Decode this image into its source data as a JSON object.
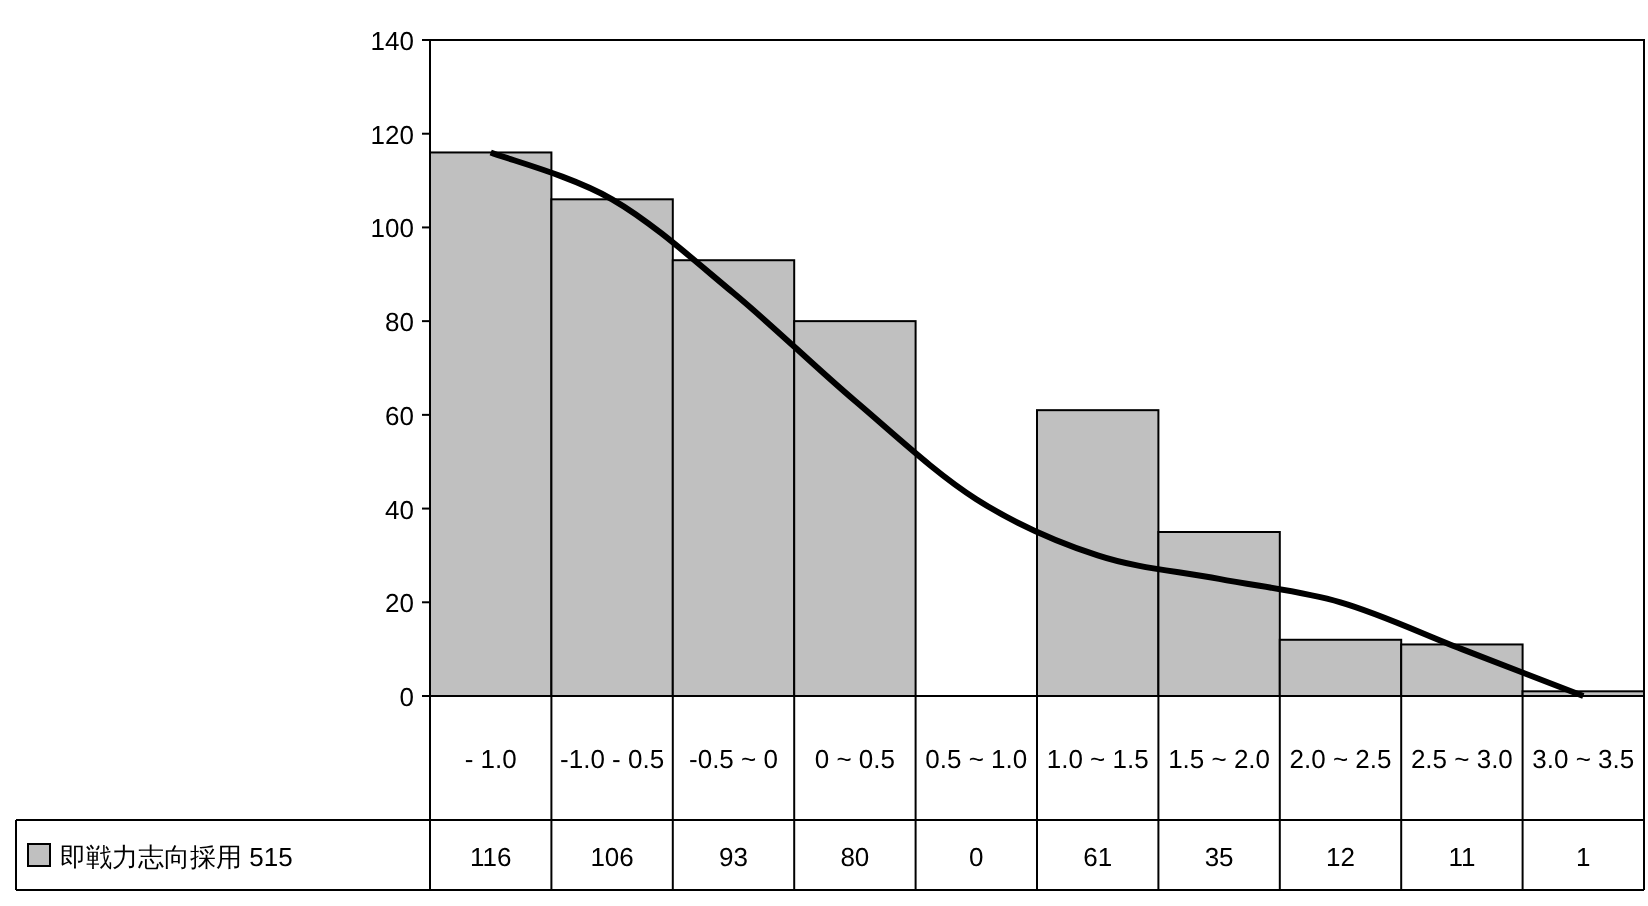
{
  "chart_data": {
    "type": "bar",
    "categories": [
      "- 1.0",
      "-1.0 - 0.5",
      "-0.5 ~ 0",
      "0 ~ 0.5",
      "0.5 ~ 1.0",
      "1.0 ~ 1.5",
      "1.5 ~ 2.0",
      "2.0 ~ 2.5",
      "2.5 ~ 3.0",
      "3.0 ~ 3.5"
    ],
    "series": [
      {
        "name": "即戦力志向採用 515",
        "color": "#c0c0c0",
        "values": [
          116,
          106,
          93,
          80,
          0,
          61,
          35,
          12,
          11,
          1
        ],
        "value_labels": [
          "116",
          "106",
          "93",
          "80",
          "0",
          "61",
          "35",
          "12",
          "11",
          "1"
        ]
      },
      {
        "type": "line",
        "color": "#000000",
        "values": [
          116,
          106,
          86,
          63,
          42,
          30,
          25,
          20,
          10,
          0
        ]
      }
    ],
    "ylim": [
      0,
      140
    ],
    "yticks": [
      0,
      20,
      40,
      60,
      80,
      100,
      120,
      140
    ],
    "grid": false,
    "legend": "bottom left"
  }
}
